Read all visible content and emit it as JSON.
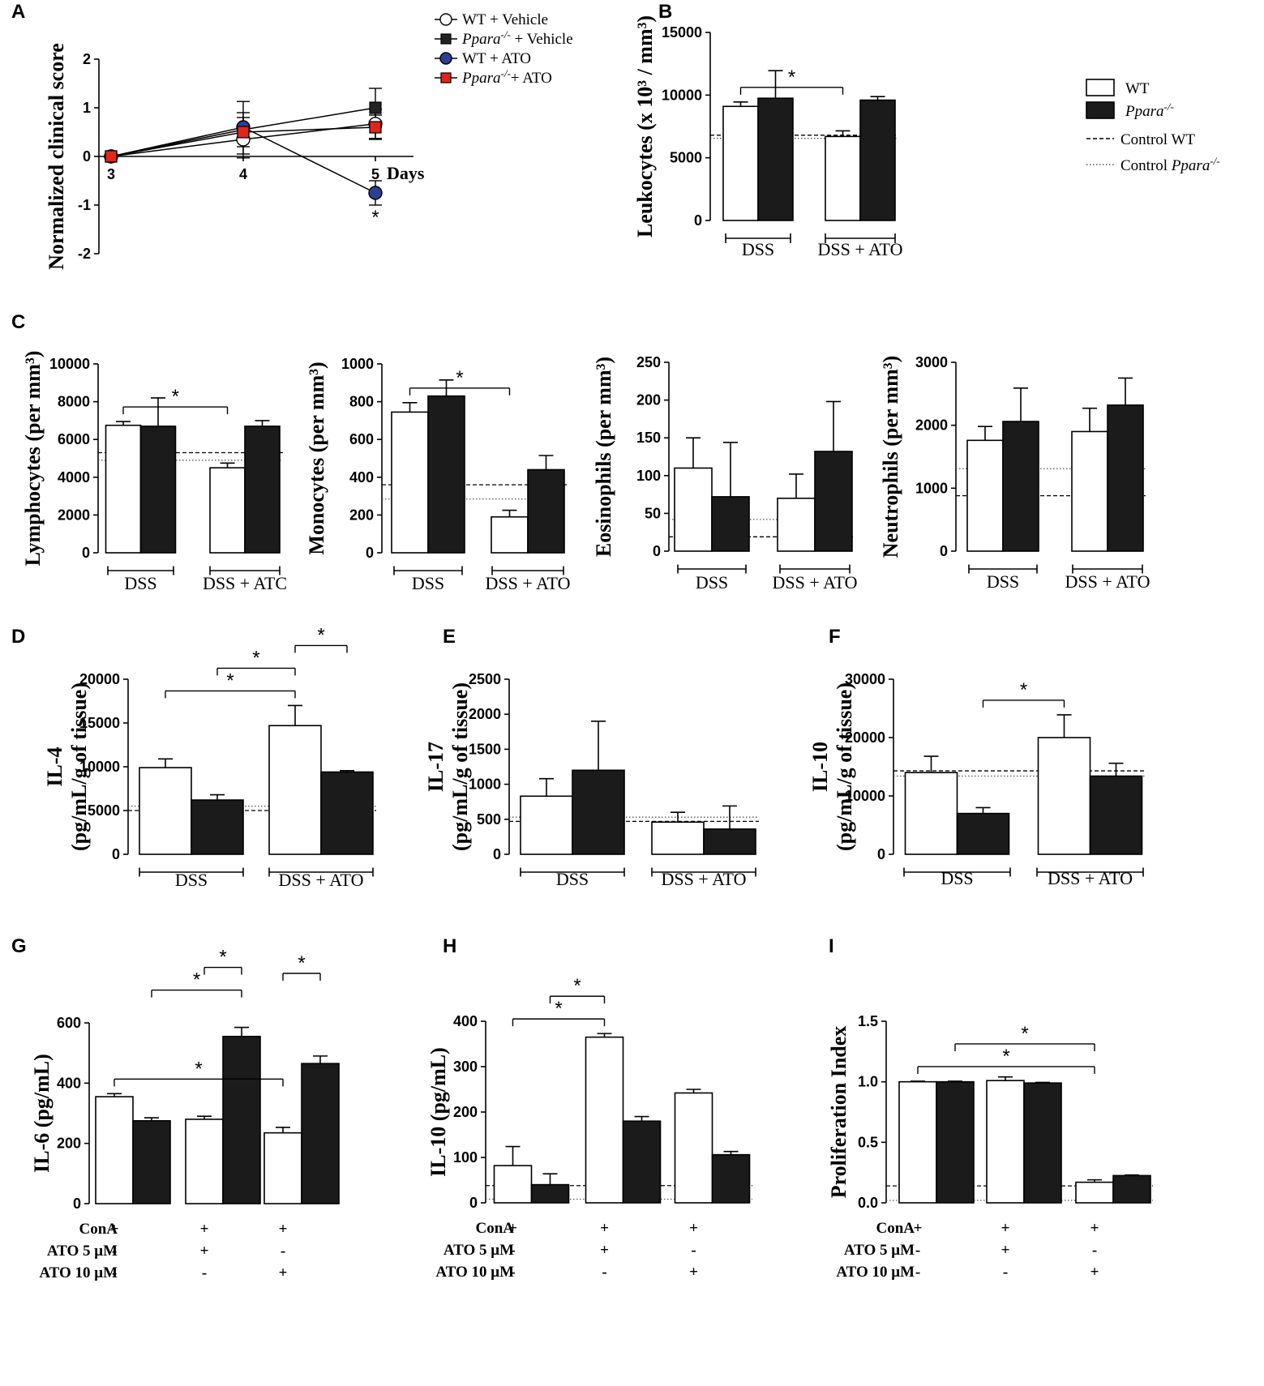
{
  "chart_data": [
    {
      "id": "A",
      "type": "line",
      "panel_label": "A",
      "ylabel": "Normalized clinical score",
      "x_unit_label": "Days",
      "x": [
        3,
        4,
        5
      ],
      "ylim": [
        -2,
        2
      ],
      "yticks": [
        2,
        1,
        0,
        -1,
        -2
      ],
      "series": [
        {
          "name": "WT + Vehicle",
          "values": [
            0,
            0.35,
            0.67
          ],
          "err": [
            0,
            0.3,
            0.3
          ],
          "marker": "circle-open",
          "color": "#ffffff"
        },
        {
          "name": "Ppara-/- + Vehicle",
          "values": [
            0,
            0.55,
            1.0
          ],
          "err": [
            0,
            0.58,
            0.4
          ],
          "marker": "square",
          "color": "#222222"
        },
        {
          "name": "WT + ATO",
          "values": [
            0,
            0.6,
            -0.75
          ],
          "err": [
            0,
            0.3,
            0.25
          ],
          "marker": "circle",
          "color": "#2d3e93"
        },
        {
          "name": "Ppara-/- + ATO",
          "values": [
            0,
            0.5,
            0.6
          ],
          "err": [
            0,
            0.3,
            0.25
          ],
          "marker": "square",
          "color": "#e3241c"
        }
      ],
      "annotations": [
        {
          "at_x": 5,
          "text": "*"
        }
      ]
    },
    {
      "id": "B",
      "type": "bar",
      "panel_label": "B",
      "ylabel": "Leukocytes (x 10³ / mm³)",
      "ylim": [
        0,
        15000
      ],
      "yticks": [
        0,
        5000,
        10000,
        15000
      ],
      "categories": [
        "DSS",
        "DSS + ATO"
      ],
      "series": [
        {
          "name": "WT",
          "values": [
            9100,
            6700
          ],
          "err": [
            350,
            450
          ]
        },
        {
          "name": "Ppara-/-",
          "values": [
            9750,
            9600
          ],
          "err": [
            2200,
            280
          ]
        }
      ],
      "ref_lines": [
        {
          "name": "Control WT",
          "value": 6800,
          "style": "dashed"
        },
        {
          "name": "Control Ppara-/-",
          "value": 6550,
          "style": "dotted"
        }
      ],
      "significance": [
        {
          "from": [
            0,
            0
          ],
          "to": [
            1,
            0
          ],
          "text": "*"
        }
      ]
    },
    {
      "id": "C1",
      "type": "bar",
      "panel_label": "C",
      "ylabel": "Lymphocytes (per mm³)",
      "ylim": [
        0,
        10000
      ],
      "yticks": [
        0,
        2000,
        4000,
        6000,
        8000,
        10000
      ],
      "categories": [
        "DSS",
        "DSS + ATC"
      ],
      "series": [
        {
          "name": "WT",
          "values": [
            6750,
            4500
          ],
          "err": [
            200,
            250
          ]
        },
        {
          "name": "Ppara-/-",
          "values": [
            6700,
            6700
          ],
          "err": [
            1500,
            300
          ]
        }
      ],
      "ref_lines": [
        {
          "name": "Control WT",
          "value": 5300,
          "style": "dashed"
        },
        {
          "name": "Control Ppara-/-",
          "value": 4900,
          "style": "dotted"
        }
      ],
      "significance": [
        {
          "from": [
            0,
            0
          ],
          "to": [
            1,
            0
          ],
          "text": "*"
        }
      ]
    },
    {
      "id": "C2",
      "type": "bar",
      "ylabel": "Monocytes (per mm³)",
      "ylim": [
        0,
        1000
      ],
      "yticks": [
        0,
        200,
        400,
        600,
        800,
        1000
      ],
      "categories": [
        "DSS",
        "DSS + ATO"
      ],
      "series": [
        {
          "name": "WT",
          "values": [
            745,
            190
          ],
          "err": [
            50,
            35
          ]
        },
        {
          "name": "Ppara-/-",
          "values": [
            830,
            440
          ],
          "err": [
            85,
            75
          ]
        }
      ],
      "ref_lines": [
        {
          "name": "Control WT",
          "value": 360,
          "style": "dashed"
        },
        {
          "name": "Control Ppara-/-",
          "value": 285,
          "style": "dotted"
        }
      ],
      "significance": [
        {
          "from": [
            0,
            0
          ],
          "to": [
            1,
            0
          ],
          "text": "*"
        }
      ]
    },
    {
      "id": "C3",
      "type": "bar",
      "ylabel": "Eosinophils (per mm³)",
      "ylim": [
        0,
        250
      ],
      "yticks": [
        0,
        50,
        100,
        150,
        200,
        250
      ],
      "categories": [
        "DSS",
        "DSS + ATO"
      ],
      "series": [
        {
          "name": "WT",
          "values": [
            110,
            70
          ],
          "err": [
            40,
            32
          ]
        },
        {
          "name": "Ppara-/-",
          "values": [
            72,
            132
          ],
          "err": [
            72,
            66
          ]
        }
      ],
      "ref_lines": [
        {
          "name": "Control WT",
          "value": 19,
          "style": "dashed"
        },
        {
          "name": "Control Ppara-/-",
          "value": 42,
          "style": "dotted"
        }
      ],
      "significance": []
    },
    {
      "id": "C4",
      "type": "bar",
      "ylabel": "Neutrophils (per mm³)",
      "ylim": [
        0,
        3000
      ],
      "yticks": [
        0,
        1000,
        2000,
        3000
      ],
      "categories": [
        "DSS",
        "DSS + ATO"
      ],
      "series": [
        {
          "name": "WT",
          "values": [
            1760,
            1900
          ],
          "err": [
            220,
            370
          ]
        },
        {
          "name": "Ppara-/-",
          "values": [
            2060,
            2320
          ],
          "err": [
            530,
            430
          ]
        }
      ],
      "ref_lines": [
        {
          "name": "Control WT",
          "value": 880,
          "style": "dashed"
        },
        {
          "name": "Control Ppara-/-",
          "value": 1310,
          "style": "dotted"
        }
      ],
      "significance": []
    },
    {
      "id": "D",
      "type": "bar",
      "panel_label": "D",
      "ylabel": "IL-4",
      "ylabel2": "(pg/mL/g of tissue)",
      "ylim": [
        0,
        20000
      ],
      "yticks": [
        0,
        5000,
        10000,
        15000,
        20000
      ],
      "categories": [
        "DSS",
        "DSS + ATO"
      ],
      "series": [
        {
          "name": "WT",
          "values": [
            9900,
            14700
          ],
          "err": [
            1000,
            2300
          ]
        },
        {
          "name": "Ppara-/-",
          "values": [
            6200,
            9400
          ],
          "err": [
            600,
            150
          ]
        }
      ],
      "ref_lines": [
        {
          "name": "Control WT",
          "value": 5000,
          "style": "dashed"
        },
        {
          "name": "Control Ppara-/-",
          "value": 5500,
          "style": "dotted"
        }
      ],
      "significance": [
        {
          "from": [
            0,
            0
          ],
          "to": [
            1,
            0
          ],
          "text": "*"
        },
        {
          "from": [
            0,
            1
          ],
          "to": [
            1,
            0
          ],
          "text": "*"
        },
        {
          "from": [
            1,
            0
          ],
          "to": [
            1,
            1
          ],
          "text": "*"
        }
      ]
    },
    {
      "id": "E",
      "type": "bar",
      "panel_label": "E",
      "ylabel": "IL-17",
      "ylabel2": "(pg/mL/g of tissue)",
      "ylim": [
        0,
        2500
      ],
      "yticks": [
        0,
        500,
        1000,
        1500,
        2000,
        2500
      ],
      "categories": [
        "DSS",
        "DSS + ATO"
      ],
      "series": [
        {
          "name": "WT",
          "values": [
            830,
            460
          ],
          "err": [
            250,
            140
          ]
        },
        {
          "name": "Ppara-/-",
          "values": [
            1200,
            360
          ],
          "err": [
            700,
            330
          ]
        }
      ],
      "ref_lines": [
        {
          "name": "Control WT",
          "value": 470,
          "style": "dashed"
        },
        {
          "name": "Control Ppara-/-",
          "value": 530,
          "style": "dotted"
        }
      ],
      "significance": []
    },
    {
      "id": "F",
      "type": "bar",
      "panel_label": "F",
      "ylabel": "IL-10",
      "ylabel2": "(pg/mL/g of tissue)",
      "ylim": [
        0,
        30000
      ],
      "yticks": [
        0,
        10000,
        20000,
        30000
      ],
      "categories": [
        "DSS",
        "DSS + ATO"
      ],
      "series": [
        {
          "name": "WT",
          "values": [
            14000,
            20000
          ],
          "err": [
            2800,
            3900
          ]
        },
        {
          "name": "Ppara-/-",
          "values": [
            7000,
            13400
          ],
          "err": [
            1000,
            2200
          ]
        }
      ],
      "ref_lines": [
        {
          "name": "Control WT",
          "value": 14300,
          "style": "dashed"
        },
        {
          "name": "Control Ppara-/-",
          "value": 13400,
          "style": "dotted"
        }
      ],
      "significance": [
        {
          "from": [
            0,
            1
          ],
          "to": [
            1,
            0
          ],
          "text": "*"
        }
      ]
    },
    {
      "id": "G",
      "type": "bar",
      "panel_label": "G",
      "ylabel": "IL-6 (pg/mL)",
      "ylim": [
        0,
        600
      ],
      "yticks": [
        0,
        200,
        400,
        600
      ],
      "conditions": [
        {
          "label": "ConA",
          "values": [
            "+",
            "+",
            "+"
          ]
        },
        {
          "label": "ATO 5 μM",
          "values": [
            "-",
            "+",
            "-"
          ]
        },
        {
          "label": "ATO 10 μM",
          "values": [
            "-",
            "-",
            "+"
          ]
        }
      ],
      "series": [
        {
          "name": "WT",
          "values": [
            355,
            280,
            235
          ],
          "err": [
            10,
            10,
            18
          ]
        },
        {
          "name": "Ppara-/-",
          "values": [
            275,
            555,
            465
          ],
          "err": [
            10,
            30,
            25
          ]
        }
      ],
      "ref_lines": [],
      "significance": [
        {
          "from": [
            0,
            0
          ],
          "to": [
            2,
            0
          ],
          "text": "*"
        },
        {
          "from": [
            0,
            1
          ],
          "to": [
            1,
            1
          ],
          "text": "*"
        },
        {
          "from": [
            1,
            0
          ],
          "to": [
            1,
            1
          ],
          "text": "*"
        },
        {
          "from": [
            2,
            0
          ],
          "to": [
            2,
            1
          ],
          "text": "*"
        }
      ]
    },
    {
      "id": "H",
      "type": "bar",
      "panel_label": "H",
      "ylabel": "IL-10 (pg/mL)",
      "ylim": [
        0,
        400
      ],
      "yticks": [
        0,
        100,
        200,
        300,
        400
      ],
      "conditions": [
        {
          "label": "ConA",
          "values": [
            "+",
            "+",
            "+"
          ]
        },
        {
          "label": "ATO 5 μM",
          "values": [
            "-",
            "+",
            "-"
          ]
        },
        {
          "label": "ATO 10 μM",
          "values": [
            "-",
            "-",
            "+"
          ]
        }
      ],
      "series": [
        {
          "name": "WT",
          "values": [
            82,
            365,
            242
          ],
          "err": [
            42,
            8,
            8
          ]
        },
        {
          "name": "Ppara-/-",
          "values": [
            40,
            180,
            106
          ],
          "err": [
            24,
            10,
            7
          ]
        }
      ],
      "ref_lines": [
        {
          "name": "Control WT",
          "value": 38,
          "style": "dashed"
        },
        {
          "name": "Control Ppara-/-",
          "value": 8,
          "style": "dotted"
        }
      ],
      "significance": [
        {
          "from": [
            0,
            0
          ],
          "to": [
            1,
            0
          ],
          "text": "*"
        },
        {
          "from": [
            0,
            1
          ],
          "to": [
            1,
            0
          ],
          "text": "*"
        }
      ]
    },
    {
      "id": "I",
      "type": "bar",
      "panel_label": "I",
      "ylabel": "Proliferation Index",
      "ylim": [
        0,
        1.5
      ],
      "yticks": [
        0.0,
        0.5,
        1.0,
        1.5
      ],
      "ytick_labels": [
        "0.0",
        "0.5",
        "1.0",
        "1.5"
      ],
      "conditions": [
        {
          "label": "ConA",
          "values": [
            "+",
            "+",
            "+"
          ]
        },
        {
          "label": "ATO 5 μM",
          "values": [
            "-",
            "+",
            "-"
          ]
        },
        {
          "label": "ATO 10 μM",
          "values": [
            "-",
            "-",
            "+"
          ]
        }
      ],
      "series": [
        {
          "name": "WT",
          "values": [
            1.0,
            1.01,
            0.17
          ],
          "err": [
            0.005,
            0.03,
            0.02
          ]
        },
        {
          "name": "Ppara-/-",
          "values": [
            1.0,
            0.99,
            0.225
          ],
          "err": [
            0.005,
            0.005,
            0.005
          ]
        }
      ],
      "ref_lines": [
        {
          "name": "Control WT",
          "value": 0.14,
          "style": "dashed"
        },
        {
          "name": "Control Ppara-/-",
          "value": 0.02,
          "style": "dotted"
        }
      ],
      "significance": [
        {
          "from": [
            0,
            0
          ],
          "to": [
            2,
            0
          ],
          "text": "*"
        },
        {
          "from": [
            0,
            1
          ],
          "to": [
            2,
            0
          ],
          "text": "*"
        }
      ]
    }
  ],
  "legend_top": {
    "items": [
      {
        "prefix": "WT",
        "italic": "",
        "sup": "",
        "suffix": " + Vehicle"
      },
      {
        "prefix": "",
        "italic": "Ppara",
        "sup": "-/-",
        "suffix": " + Vehicle"
      },
      {
        "prefix": "WT",
        "italic": "",
        "sup": "",
        "suffix": " + ATO"
      },
      {
        "prefix": "",
        "italic": "Ppara",
        "sup": "-/-",
        "suffix": "+ ATO"
      }
    ]
  },
  "legend_bars": {
    "wt": "WT",
    "ko_italic": "Ppara",
    "ko_sup": "-/-",
    "control_wt": "Control WT",
    "control_ko_prefix": "Control ",
    "control_ko_italic": "Ppara",
    "control_ko_sup": "-/-"
  },
  "colors": {
    "wt_bar": "#ffffff",
    "ko_bar": "#1b1b1b",
    "wt_ato": "#2d3e93",
    "ko_ato": "#e3241c"
  }
}
